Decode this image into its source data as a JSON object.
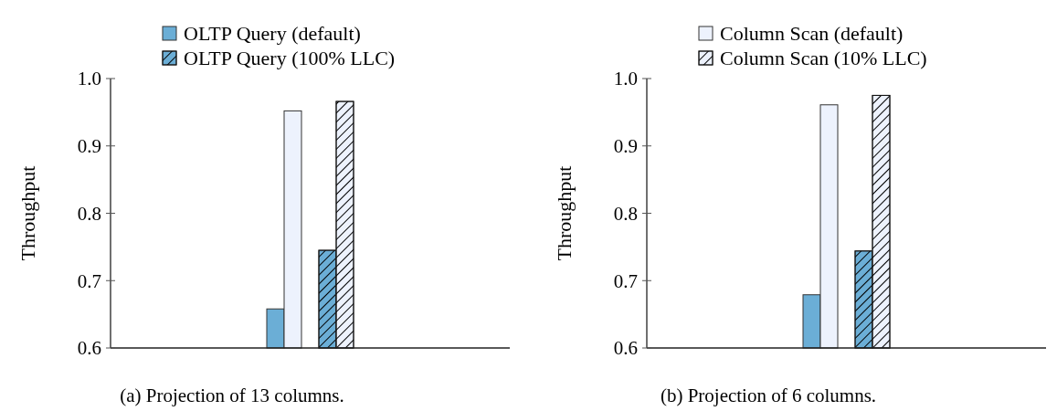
{
  "chart_data": [
    {
      "type": "bar",
      "ylabel": "Throughput",
      "categories": [
        null,
        null
      ],
      "ylim": [
        0.6,
        1.0
      ],
      "yticks": [
        0.6,
        0.7,
        0.8,
        0.9,
        {
          "value": 1.0,
          "label": "1.0"
        }
      ],
      "grid": false,
      "legend": "top",
      "annotations": [
        "(a) Projection of 13 columns."
      ],
      "series": [
        {
          "name": "OLTP Query (default)",
          "color": "#6baed6",
          "values": [
            0.658,
            null
          ]
        },
        {
          "color": "#edf2fd",
          "values": [
            0.952,
            null
          ]
        },
        {
          "name": "OLTP Query (100% LLC)",
          "color": "#6baed6",
          "values": [
            null,
            0.745
          ]
        },
        {
          "color": "#edf2fd",
          "values": [
            null,
            0.966
          ]
        }
      ]
    },
    {
      "type": "bar",
      "ylabel": "Throughput",
      "categories": [
        null,
        null
      ],
      "ylim": [
        0.6,
        1.0
      ],
      "yticks": [
        0.6,
        0.7,
        0.8,
        0.9,
        {
          "value": 1.0,
          "label": "1.0"
        }
      ],
      "grid": false,
      "legend": "top",
      "annotations": [
        "(b) Projection of 6 columns."
      ],
      "series": [
        {
          "color": "#6baed6",
          "values": [
            0.679,
            null
          ]
        },
        {
          "name": "Column Scan (default)",
          "color": "#edf2fd",
          "values": [
            0.961,
            null
          ]
        },
        {
          "color": "#6baed6",
          "values": [
            null,
            0.744
          ]
        },
        {
          "name": "Column Scan (10% LLC)",
          "color": "#edf2fd",
          "values": [
            null,
            0.975
          ]
        }
      ]
    }
  ]
}
